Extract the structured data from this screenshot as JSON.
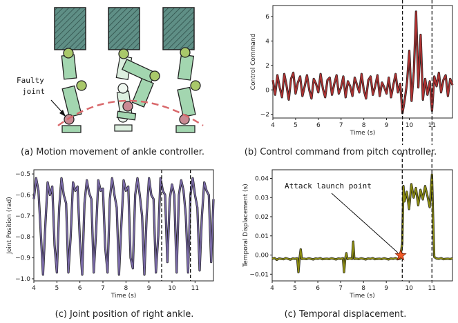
{
  "captions": {
    "a": "(a) Motion movement of ankle controller.",
    "b": "(b) Control command from pitch controller.",
    "c": "(c) Joint position of right ankle.",
    "d": "(c) Temporal displacement."
  },
  "annotations": {
    "faulty_line1": "Faulty",
    "faulty_line2": "joint",
    "attack": "Attack launch point"
  },
  "colors": {
    "body_dark": "#5f8f86",
    "limb_green": "#a3d6b0",
    "limb_light": "#dcefdf",
    "joint_green": "#a9c86a",
    "faulty_joint": "#c98a93",
    "trajectory": "#d9686b",
    "command_series": "#b03232",
    "joint_series": "#7a6aa8",
    "temporal_series": "#8c8c10"
  },
  "chart_data": [
    {
      "type": "line",
      "xlabel": "Time (s)",
      "ylabel": "Control Command",
      "xlim": [
        4,
        11.9
      ],
      "ylim": [
        -2.3,
        6.9
      ],
      "xticks": [
        4,
        5,
        6,
        7,
        8,
        9,
        10,
        11
      ],
      "yticks": [
        -2,
        0,
        2,
        4,
        6
      ],
      "vlines": [
        9.7,
        11.0
      ],
      "grid": false,
      "x": [
        4.0,
        4.1,
        4.2,
        4.3,
        4.4,
        4.5,
        4.6,
        4.7,
        4.8,
        4.9,
        5.0,
        5.1,
        5.2,
        5.3,
        5.4,
        5.5,
        5.6,
        5.7,
        5.8,
        5.9,
        6.0,
        6.1,
        6.2,
        6.3,
        6.4,
        6.5,
        6.6,
        6.7,
        6.8,
        6.9,
        7.0,
        7.1,
        7.2,
        7.3,
        7.4,
        7.5,
        7.6,
        7.7,
        7.8,
        7.9,
        8.0,
        8.1,
        8.2,
        8.3,
        8.4,
        8.5,
        8.6,
        8.7,
        8.8,
        8.9,
        9.0,
        9.1,
        9.2,
        9.3,
        9.4,
        9.5,
        9.6,
        9.7,
        9.8,
        9.9,
        10.0,
        10.1,
        10.2,
        10.3,
        10.4,
        10.5,
        10.6,
        10.7,
        10.8,
        10.9,
        11.0,
        11.1,
        11.2,
        11.3,
        11.4,
        11.5,
        11.6,
        11.7,
        11.8,
        11.9
      ],
      "y": [
        0.8,
        -0.4,
        1.2,
        0.2,
        -0.6,
        1.3,
        0.4,
        -0.8,
        0.9,
        1.4,
        -0.3,
        0.6,
        1.1,
        -0.5,
        0.3,
        1.2,
        0.0,
        -0.7,
        0.9,
        0.5,
        -0.2,
        1.3,
        0.1,
        -0.6,
        0.8,
        1.0,
        -0.4,
        0.5,
        1.2,
        -0.3,
        0.2,
        1.1,
        -0.6,
        0.7,
        0.3,
        -0.5,
        1.0,
        0.4,
        -0.2,
        1.3,
        0.0,
        -0.7,
        0.8,
        1.1,
        -0.4,
        0.3,
        1.2,
        -0.5,
        0.6,
        0.2,
        -0.3,
        1.0,
        -0.6,
        0.4,
        1.3,
        -0.2,
        0.5,
        -1.9,
        -0.8,
        0.6,
        3.2,
        -0.9,
        1.5,
        6.4,
        0.2,
        4.5,
        -0.8,
        0.9,
        -0.4,
        0.7,
        -1.7,
        1.1,
        0.3,
        1.4,
        -0.2,
        0.8,
        1.2,
        -0.5,
        0.9,
        0.4
      ]
    },
    {
      "type": "line",
      "xlabel": "Time (s)",
      "ylabel": "Joint Position (rad)",
      "xlim": [
        4,
        11.8
      ],
      "ylim": [
        -1.01,
        -0.48
      ],
      "xticks": [
        4,
        5,
        6,
        7,
        8,
        9,
        10,
        11
      ],
      "yticks": [
        -1.0,
        -0.9,
        -0.8,
        -0.7,
        -0.6,
        -0.5
      ],
      "vlines": [
        9.55,
        10.8
      ],
      "grid": false,
      "x": [
        4.0,
        4.1,
        4.2,
        4.3,
        4.4,
        4.5,
        4.6,
        4.7,
        4.8,
        4.9,
        5.0,
        5.1,
        5.2,
        5.3,
        5.4,
        5.5,
        5.6,
        5.7,
        5.8,
        5.9,
        6.0,
        6.1,
        6.2,
        6.3,
        6.4,
        6.5,
        6.6,
        6.7,
        6.8,
        6.9,
        7.0,
        7.1,
        7.2,
        7.3,
        7.4,
        7.5,
        7.6,
        7.7,
        7.8,
        7.9,
        8.0,
        8.1,
        8.2,
        8.3,
        8.4,
        8.5,
        8.6,
        8.7,
        8.8,
        8.9,
        9.0,
        9.1,
        9.2,
        9.3,
        9.4,
        9.5,
        9.6,
        9.7,
        9.8,
        9.9,
        10.0,
        10.1,
        10.2,
        10.3,
        10.4,
        10.5,
        10.6,
        10.7,
        10.8,
        10.9,
        11.0,
        11.1,
        11.2,
        11.3,
        11.4,
        11.5,
        11.6,
        11.7,
        11.8
      ],
      "y": [
        -0.62,
        -0.52,
        -0.58,
        -0.78,
        -0.98,
        -0.74,
        -0.54,
        -0.6,
        -0.56,
        -0.84,
        -0.97,
        -0.66,
        -0.52,
        -0.6,
        -0.64,
        -0.97,
        -0.8,
        -0.54,
        -0.58,
        -0.56,
        -0.82,
        -0.98,
        -0.64,
        -0.53,
        -0.59,
        -0.62,
        -0.97,
        -0.78,
        -0.53,
        -0.58,
        -0.57,
        -0.85,
        -0.97,
        -0.62,
        -0.52,
        -0.6,
        -0.66,
        -0.98,
        -0.74,
        -0.53,
        -0.58,
        -0.56,
        -0.9,
        -0.95,
        -0.6,
        -0.52,
        -0.6,
        -0.7,
        -0.98,
        -0.7,
        -0.52,
        -0.6,
        -0.62,
        -0.97,
        -0.8,
        -0.52,
        -0.58,
        -0.6,
        -0.92,
        -0.62,
        -0.55,
        -0.6,
        -0.97,
        -0.6,
        -0.53,
        -0.58,
        -0.7,
        -0.97,
        -0.6,
        -0.52,
        -0.6,
        -0.66,
        -0.96,
        -0.7,
        -0.54,
        -0.58,
        -0.6,
        -0.92,
        -0.62
      ]
    },
    {
      "type": "line",
      "xlabel": "Time (s)",
      "ylabel": "Temporal Displacement (s)",
      "xlim": [
        4,
        11.9
      ],
      "ylim": [
        -0.0135,
        0.0445
      ],
      "xticks": [
        4,
        5,
        6,
        7,
        8,
        9,
        10,
        11
      ],
      "yticks": [
        -0.01,
        0.0,
        0.01,
        0.02,
        0.03,
        0.04
      ],
      "vlines": [
        9.7,
        11.0
      ],
      "grid": false,
      "markers": [
        {
          "x": 9.63,
          "y": -0.0002,
          "label": "Attack launch point"
        }
      ],
      "x": [
        4.0,
        4.1,
        4.2,
        4.3,
        4.4,
        4.5,
        4.6,
        4.7,
        4.8,
        4.9,
        5.0,
        5.1,
        5.15,
        5.2,
        5.25,
        5.3,
        5.4,
        5.5,
        5.6,
        5.7,
        5.8,
        5.9,
        6.0,
        6.1,
        6.2,
        6.3,
        6.4,
        6.5,
        6.6,
        6.7,
        6.8,
        6.9,
        7.0,
        7.1,
        7.15,
        7.2,
        7.25,
        7.3,
        7.4,
        7.5,
        7.55,
        7.6,
        7.7,
        7.8,
        7.9,
        8.0,
        8.1,
        8.2,
        8.3,
        8.4,
        8.5,
        8.6,
        8.7,
        8.8,
        8.9,
        9.0,
        9.1,
        9.2,
        9.3,
        9.4,
        9.5,
        9.6,
        9.7,
        9.75,
        9.8,
        9.9,
        10.0,
        10.1,
        10.2,
        10.3,
        10.4,
        10.5,
        10.6,
        10.7,
        10.8,
        10.9,
        11.0,
        11.05,
        11.1,
        11.2,
        11.3,
        11.4,
        11.5,
        11.6,
        11.7,
        11.8,
        11.9
      ],
      "y": [
        -0.002,
        -0.0015,
        -0.0025,
        -0.0018,
        -0.002,
        -0.0022,
        -0.0016,
        -0.002,
        -0.0024,
        -0.0018,
        -0.002,
        -0.0017,
        -0.009,
        -0.002,
        0.003,
        -0.002,
        -0.0019,
        -0.0021,
        -0.0017,
        -0.002,
        -0.0023,
        -0.0018,
        -0.002,
        -0.0016,
        -0.0022,
        -0.002,
        -0.0019,
        -0.0021,
        -0.0017,
        -0.002,
        -0.0023,
        -0.0018,
        -0.002,
        -0.0016,
        -0.009,
        -0.002,
        0.001,
        -0.0021,
        -0.0017,
        -0.002,
        0.007,
        -0.002,
        -0.0019,
        -0.0021,
        -0.0017,
        -0.002,
        -0.0023,
        -0.0018,
        -0.002,
        -0.0016,
        -0.0022,
        -0.002,
        -0.0019,
        -0.0021,
        -0.0017,
        -0.002,
        -0.0023,
        -0.0018,
        -0.002,
        -0.0016,
        -0.0022,
        -0.002,
        0.006,
        0.036,
        0.028,
        0.033,
        0.024,
        0.037,
        0.03,
        0.035,
        0.026,
        0.034,
        0.029,
        0.036,
        0.031,
        0.025,
        0.042,
        0.02,
        -0.001,
        -0.0018,
        -0.002,
        -0.0016,
        -0.0022,
        -0.002,
        -0.0019,
        -0.0021,
        -0.0017
      ]
    }
  ]
}
